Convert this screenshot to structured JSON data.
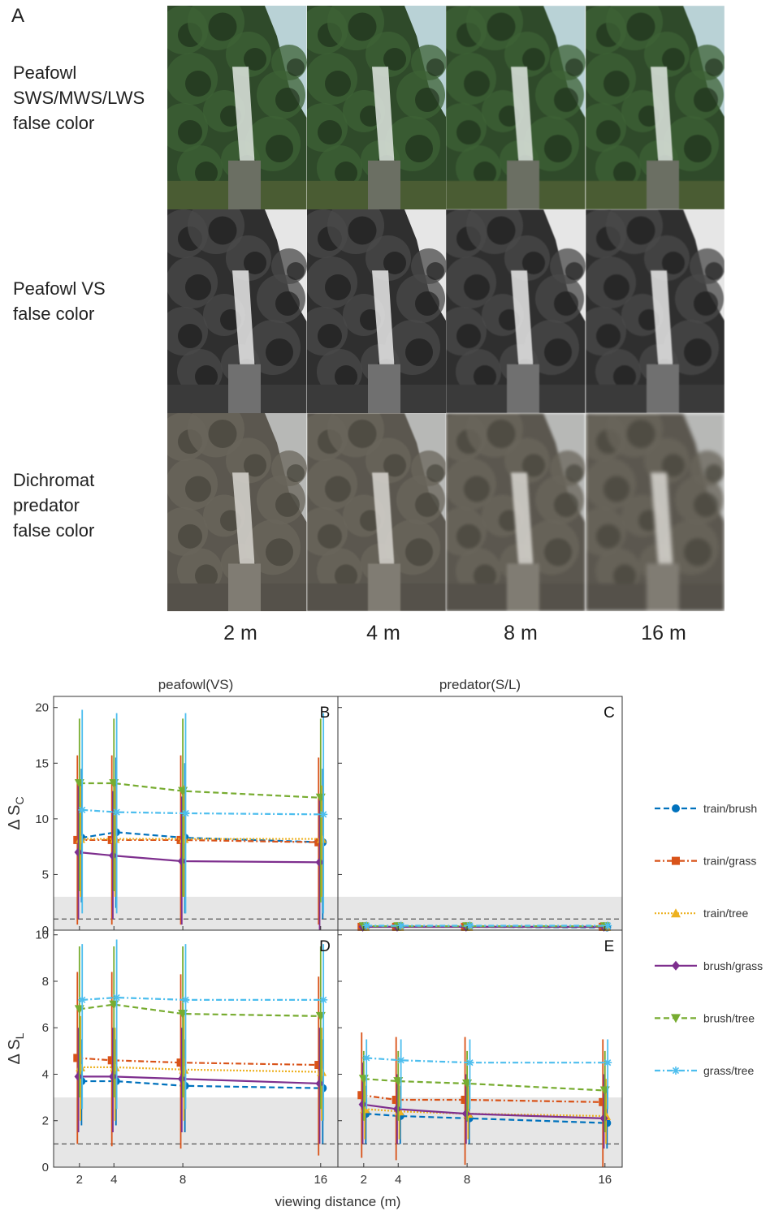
{
  "figure": {
    "panel_a_letter": "A",
    "rows": [
      {
        "label": "Peafowl\nSWS/MWS/LWS\nfalse color",
        "palette": "green"
      },
      {
        "label": "Peafowl VS\nfalse color",
        "palette": "gray"
      },
      {
        "label": "Dichromat\npredator\nfalse color",
        "palette": "sepia"
      }
    ],
    "distances": [
      "2 m",
      "4 m",
      "8 m",
      "16 m"
    ]
  },
  "chart_data": {
    "type": "line",
    "xlabel": "viewing distance (m)",
    "xticks": [
      2,
      4,
      8,
      16
    ],
    "columns": [
      "peafowl(VS)",
      "predator(S/L)"
    ],
    "rows_ylabels": [
      "Δ S_C",
      "Δ S_L"
    ],
    "grey_band": [
      0,
      3
    ],
    "dashed_threshold": 1,
    "legend": [
      {
        "name": "train/brush",
        "color": "#0072BD",
        "marker": "circle",
        "dash": "dashed"
      },
      {
        "name": "train/grass",
        "color": "#D95319",
        "marker": "square",
        "dash": "dashdot"
      },
      {
        "name": "train/tree",
        "color": "#EDB120",
        "marker": "triangle-up",
        "dash": "dotted"
      },
      {
        "name": "brush/grass",
        "color": "#7E2F8E",
        "marker": "diamond",
        "dash": "solid"
      },
      {
        "name": "brush/tree",
        "color": "#77AC30",
        "marker": "triangle-down",
        "dash": "dashed"
      },
      {
        "name": "grass/tree",
        "color": "#4DBEEE",
        "marker": "asterisk",
        "dash": "dashdot"
      }
    ],
    "panels": [
      {
        "letter": "B",
        "ylim": [
          0,
          21
        ],
        "yticks": [
          0,
          5,
          10,
          15,
          20
        ],
        "series": [
          {
            "name": "train/brush",
            "y": [
              8.3,
              8.8,
              8.3,
              7.9
            ],
            "err": [
              [
                2.5,
                14.5
              ],
              [
                2.0,
                15.5
              ],
              [
                1.5,
                15.0
              ],
              [
                1.0,
                14.5
              ]
            ]
          },
          {
            "name": "train/grass",
            "y": [
              8.1,
              8.1,
              8.1,
              7.9
            ],
            "err": [
              [
                0.5,
                15.7
              ],
              [
                0.5,
                15.7
              ],
              [
                0.5,
                15.7
              ],
              [
                0.5,
                15.5
              ]
            ]
          },
          {
            "name": "train/tree",
            "y": [
              8.2,
              8.2,
              8.2,
              8.2
            ],
            "err": [
              [
                3.0,
                13.0
              ],
              [
                3.0,
                13.0
              ],
              [
                3.0,
                13.0
              ],
              [
                3.0,
                13.0
              ]
            ]
          },
          {
            "name": "brush/grass",
            "y": [
              7.0,
              6.7,
              6.2,
              6.1
            ],
            "err": [
              [
                1.0,
                13.0
              ],
              [
                1.0,
                12.5
              ],
              [
                0.5,
                12.0
              ],
              [
                0.0,
                12.0
              ]
            ]
          },
          {
            "name": "brush/tree",
            "y": [
              13.2,
              13.2,
              12.5,
              11.9
            ],
            "err": [
              [
                3.5,
                19.0
              ],
              [
                3.5,
                19.0
              ],
              [
                3.0,
                19.0
              ],
              [
                2.5,
                19.0
              ]
            ]
          },
          {
            "name": "grass/tree",
            "y": [
              10.8,
              10.6,
              10.5,
              10.4
            ],
            "err": [
              [
                1.5,
                19.8
              ],
              [
                1.5,
                19.5
              ],
              [
                1.5,
                19.5
              ],
              [
                1.5,
                19.5
              ]
            ]
          }
        ]
      },
      {
        "letter": "C",
        "ylim": [
          0,
          21
        ],
        "yticks": [
          0,
          5,
          10,
          15,
          20
        ],
        "series": [
          {
            "name": "train/brush",
            "y": [
              0.3,
              0.3,
              0.3,
              0.25
            ],
            "err": [
              [
                0.1,
                0.5
              ],
              [
                0.1,
                0.5
              ],
              [
                0.1,
                0.5
              ],
              [
                0.1,
                0.5
              ]
            ]
          },
          {
            "name": "train/grass",
            "y": [
              0.3,
              0.3,
              0.3,
              0.3
            ],
            "err": [
              [
                0.1,
                0.5
              ],
              [
                0.1,
                0.5
              ],
              [
                0.1,
                0.5
              ],
              [
                0.1,
                0.5
              ]
            ]
          },
          {
            "name": "train/tree",
            "y": [
              0.3,
              0.3,
              0.3,
              0.3
            ],
            "err": [
              [
                0.1,
                0.5
              ],
              [
                0.1,
                0.5
              ],
              [
                0.1,
                0.5
              ],
              [
                0.1,
                0.5
              ]
            ]
          },
          {
            "name": "brush/grass",
            "y": [
              0.3,
              0.3,
              0.3,
              0.3
            ],
            "err": [
              [
                0.1,
                0.5
              ],
              [
                0.1,
                0.5
              ],
              [
                0.1,
                0.5
              ],
              [
                0.1,
                0.5
              ]
            ]
          },
          {
            "name": "brush/tree",
            "y": [
              0.35,
              0.35,
              0.35,
              0.35
            ],
            "err": [
              [
                0.1,
                0.6
              ],
              [
                0.1,
                0.6
              ],
              [
                0.1,
                0.6
              ],
              [
                0.1,
                0.6
              ]
            ]
          },
          {
            "name": "grass/tree",
            "y": [
              0.4,
              0.4,
              0.4,
              0.4
            ],
            "err": [
              [
                0.1,
                0.6
              ],
              [
                0.1,
                0.6
              ],
              [
                0.1,
                0.6
              ],
              [
                0.1,
                0.6
              ]
            ]
          }
        ]
      },
      {
        "letter": "D",
        "ylim": [
          0,
          10.2
        ],
        "yticks": [
          0,
          2,
          4,
          6,
          8,
          10
        ],
        "series": [
          {
            "name": "train/brush",
            "y": [
              3.7,
              3.7,
              3.5,
              3.4
            ],
            "err": [
              [
                1.8,
                5.5
              ],
              [
                1.8,
                5.5
              ],
              [
                1.5,
                5.5
              ],
              [
                1.0,
                5.5
              ]
            ]
          },
          {
            "name": "train/grass",
            "y": [
              4.7,
              4.6,
              4.5,
              4.4
            ],
            "err": [
              [
                1.0,
                8.4
              ],
              [
                0.9,
                8.4
              ],
              [
                0.8,
                8.3
              ],
              [
                0.5,
                8.2
              ]
            ]
          },
          {
            "name": "train/tree",
            "y": [
              4.3,
              4.3,
              4.2,
              4.1
            ],
            "err": [
              [
                2.0,
                6.5
              ],
              [
                2.0,
                6.0
              ],
              [
                2.0,
                6.5
              ],
              [
                2.0,
                6.0
              ]
            ]
          },
          {
            "name": "brush/grass",
            "y": [
              3.9,
              3.9,
              3.8,
              3.6
            ],
            "err": [
              [
                1.5,
                6.0
              ],
              [
                1.5,
                6.0
              ],
              [
                1.5,
                6.0
              ],
              [
                1.0,
                6.0
              ]
            ]
          },
          {
            "name": "brush/tree",
            "y": [
              6.8,
              7.0,
              6.6,
              6.5
            ],
            "err": [
              [
                3.0,
                9.5
              ],
              [
                3.0,
                9.5
              ],
              [
                3.0,
                9.5
              ],
              [
                2.5,
                9.5
              ]
            ]
          },
          {
            "name": "grass/tree",
            "y": [
              7.2,
              7.3,
              7.2,
              7.2
            ],
            "err": [
              [
                2.5,
                9.6
              ],
              [
                2.5,
                9.8
              ],
              [
                2.5,
                9.6
              ],
              [
                2.0,
                9.6
              ]
            ]
          }
        ]
      },
      {
        "letter": "E",
        "ylim": [
          0,
          10.2
        ],
        "yticks": [
          0,
          2,
          4,
          6,
          8,
          10
        ],
        "series": [
          {
            "name": "train/brush",
            "y": [
              2.3,
              2.2,
              2.1,
              1.9
            ],
            "err": [
              [
                1.0,
                3.5
              ],
              [
                1.0,
                3.5
              ],
              [
                1.0,
                3.5
              ],
              [
                0.8,
                3.5
              ]
            ]
          },
          {
            "name": "train/grass",
            "y": [
              3.1,
              2.9,
              2.9,
              2.8
            ],
            "err": [
              [
                0.4,
                5.8
              ],
              [
                0.3,
                5.6
              ],
              [
                0.1,
                5.6
              ],
              [
                0.0,
                5.5
              ]
            ]
          },
          {
            "name": "train/tree",
            "y": [
              2.5,
              2.4,
              2.3,
              2.2
            ],
            "err": [
              [
                1.2,
                3.8
              ],
              [
                1.2,
                3.8
              ],
              [
                1.2,
                3.8
              ],
              [
                1.0,
                3.8
              ]
            ]
          },
          {
            "name": "brush/grass",
            "y": [
              2.7,
              2.5,
              2.3,
              2.1
            ],
            "err": [
              [
                1.0,
                4.5
              ],
              [
                1.0,
                4.0
              ],
              [
                1.0,
                4.0
              ],
              [
                0.8,
                4.0
              ]
            ]
          },
          {
            "name": "brush/tree",
            "y": [
              3.8,
              3.7,
              3.6,
              3.3
            ],
            "err": [
              [
                2.0,
                5.0
              ],
              [
                2.0,
                5.0
              ],
              [
                2.0,
                5.0
              ],
              [
                1.5,
                5.0
              ]
            ]
          },
          {
            "name": "grass/tree",
            "y": [
              4.7,
              4.6,
              4.5,
              4.5
            ],
            "err": [
              [
                2.5,
                5.5
              ],
              [
                2.5,
                5.5
              ],
              [
                2.5,
                5.5
              ],
              [
                2.5,
                5.5
              ]
            ]
          }
        ]
      }
    ]
  }
}
